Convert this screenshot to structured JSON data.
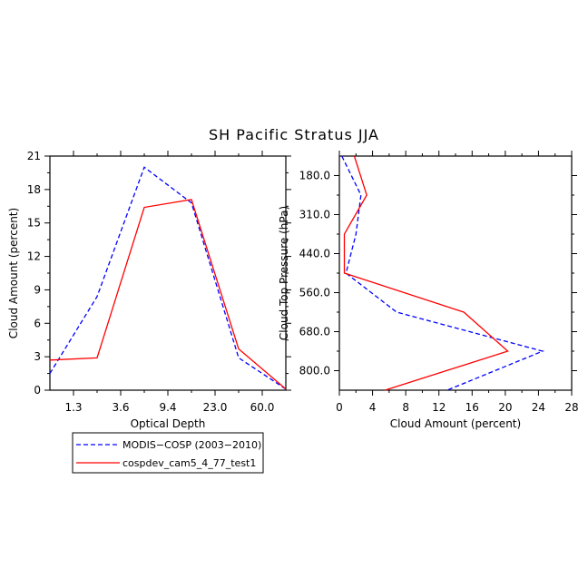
{
  "figure": {
    "title": "SH Pacific Stratus JJA"
  },
  "legend": {
    "items": [
      {
        "label": "MODIS−COSP (2003−2010)",
        "color": "#0000ff",
        "dash": true
      },
      {
        "label": "cospdev_cam5_4_77_test1",
        "color": "#ff0000",
        "dash": false
      }
    ]
  },
  "chart_data": [
    {
      "type": "line",
      "xlabel": "Optical Depth",
      "ylabel": "Cloud Amount (percent)",
      "x_tick_labels": [
        "1.3",
        "3.6",
        "9.4",
        "23.0",
        "60.0"
      ],
      "x_tick_positions": [
        1,
        3,
        5,
        7,
        9
      ],
      "xlim": [
        0,
        10
      ],
      "ylim": [
        0,
        21
      ],
      "y_ticks": [
        0,
        3,
        6,
        9,
        12,
        15,
        18,
        21
      ],
      "series": [
        {
          "name": "MODIS−COSP (2003−2010)",
          "color": "#0000ff",
          "dash": true,
          "x": [
            0,
            2,
            4,
            6,
            8,
            10
          ],
          "y": [
            1.5,
            8.4,
            20.0,
            16.8,
            2.9,
            0.1
          ]
        },
        {
          "name": "cospdev_cam5_4_77_test1",
          "color": "#ff0000",
          "dash": false,
          "x": [
            0,
            2,
            4,
            6,
            8,
            10
          ],
          "y": [
            2.7,
            2.9,
            16.4,
            17.1,
            3.7,
            0.1
          ]
        }
      ]
    },
    {
      "type": "line",
      "xlabel": "Cloud Amount (percent)",
      "ylabel": "Cloud Top Pressure (hPa)",
      "xlim": [
        0,
        28
      ],
      "x_ticks": [
        0,
        4,
        8,
        12,
        16,
        20,
        24,
        28
      ],
      "y_tick_labels": [
        "180.0",
        "310.0",
        "440.0",
        "560.0",
        "680.0",
        "800.0"
      ],
      "y_tick_positions": [
        1,
        3,
        5,
        7,
        9,
        11
      ],
      "ylim": [
        0,
        12
      ],
      "y_inverted": true,
      "series": [
        {
          "name": "MODIS−COSP (2003−2010)",
          "color": "#0000ff",
          "dash": true,
          "x": [
            0.3,
            2.6,
            2.0,
            0.8,
            6.9,
            24.5,
            13.0
          ],
          "y": [
            0,
            2,
            4,
            6,
            8,
            10,
            12
          ]
        },
        {
          "name": "cospdev_cam5_4_77_test1",
          "color": "#ff0000",
          "dash": false,
          "x": [
            1.8,
            3.3,
            0.6,
            0.6,
            15.0,
            20.3,
            5.5
          ],
          "y": [
            0,
            2,
            4,
            6,
            8,
            10,
            12
          ]
        }
      ]
    }
  ]
}
